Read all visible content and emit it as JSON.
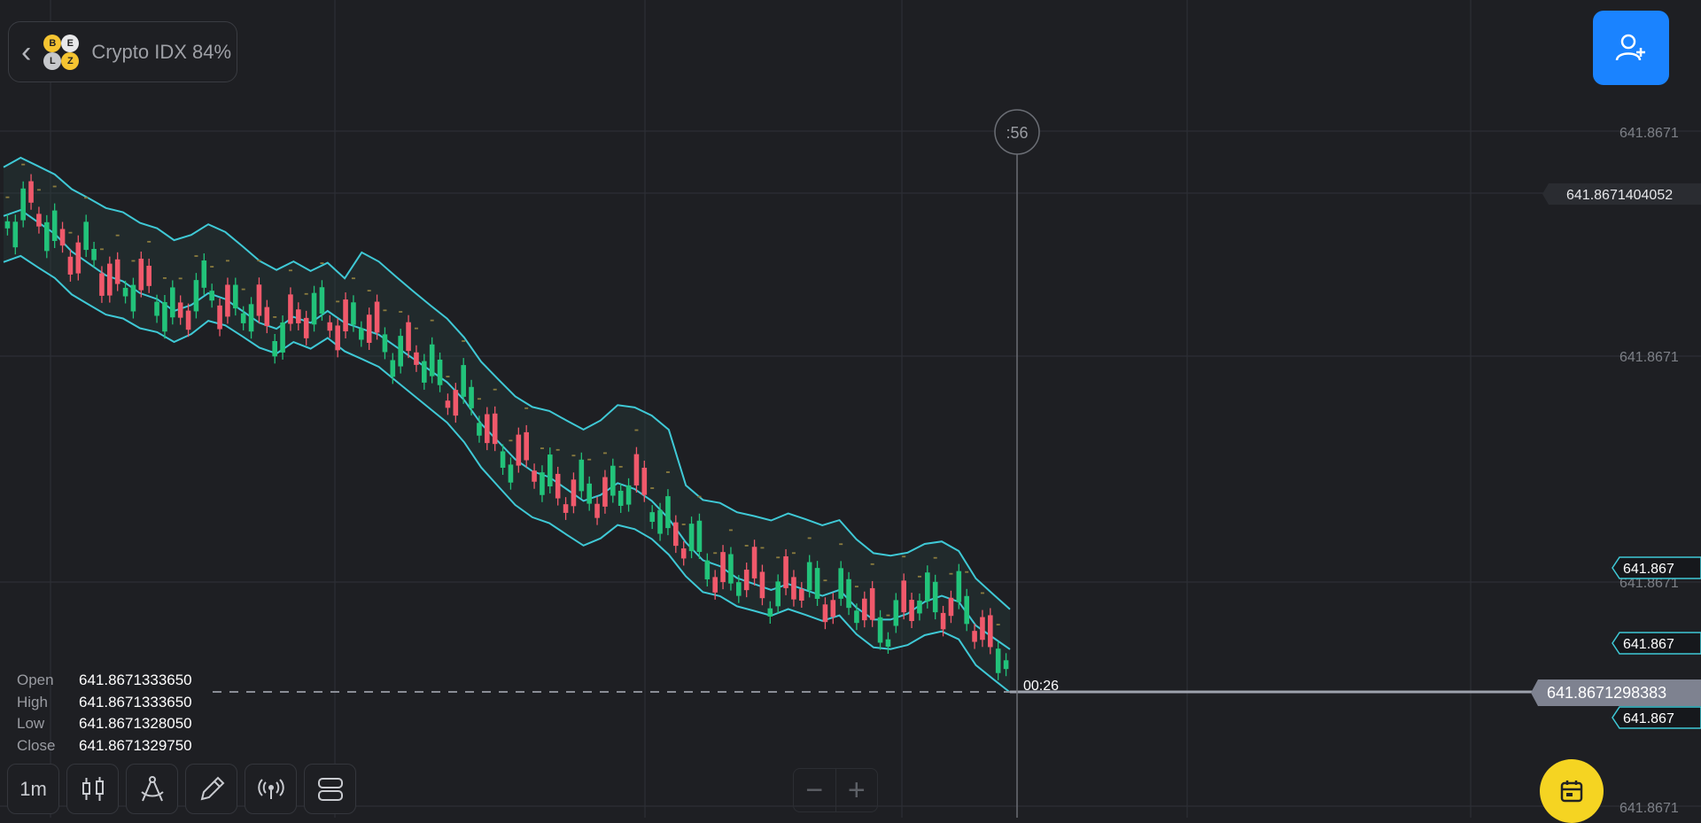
{
  "asset": {
    "title": "Crypto IDX 84%",
    "coin_letters": [
      "B",
      "E",
      "L",
      "Z"
    ]
  },
  "timer": ":56",
  "countdown": "00:26",
  "price_axis": {
    "ticks": [
      {
        "price": 641.8671,
        "label": "641.8671"
      },
      {
        "price": 641.8671,
        "label": "641.8671"
      },
      {
        "price": 641.8671,
        "label": "641.8671"
      },
      {
        "price": 641.8671,
        "label": "641.8671"
      }
    ],
    "high_marker": "641.8671404052",
    "current_price": "641.8671298383",
    "indicator_badges": [
      "641.867",
      "641.867",
      "641.867"
    ]
  },
  "ohlc": {
    "open_label": "Open",
    "open": "641.8671333650",
    "high_label": "High",
    "high": "641.8671333650",
    "low_label": "Low",
    "low": "641.8671328050",
    "close_label": "Close",
    "close": "641.8671329750"
  },
  "toolbar": {
    "timeframe": "1m",
    "icons": [
      "candles-icon",
      "drawing-icon",
      "pencil-icon",
      "signals-icon",
      "layout-icon"
    ]
  },
  "zoom": {
    "minus": "−",
    "plus": "+"
  },
  "colors": {
    "bullish": "#22c37a",
    "bearish": "#f0596b",
    "band": "#3fc9d6",
    "accent": "#1a83ff",
    "calendar": "#f5d422"
  },
  "chart_data": {
    "type": "candlestick",
    "indicators": [
      "bollinger-bands",
      "parabolic-sar"
    ],
    "close_trend": [
      0.14,
      0.13,
      0.15,
      0.17,
      0.2,
      0.22,
      0.24,
      0.25,
      0.27,
      0.28,
      0.3,
      0.29,
      0.27,
      0.28,
      0.3,
      0.32,
      0.33,
      0.31,
      0.32,
      0.3,
      0.32,
      0.33,
      0.34,
      0.36,
      0.38,
      0.4,
      0.42,
      0.45,
      0.49,
      0.52,
      0.55,
      0.57,
      0.58,
      0.6,
      0.62,
      0.61,
      0.59,
      0.6,
      0.62,
      0.65,
      0.69,
      0.72,
      0.73,
      0.75,
      0.76,
      0.77,
      0.76,
      0.77,
      0.78,
      0.77,
      0.8,
      0.82,
      0.82,
      0.81,
      0.79,
      0.78,
      0.79,
      0.83,
      0.85,
      0.87
    ],
    "ohlc_last": {
      "open": 641.867133365,
      "high": 641.867133365,
      "low": 641.867132805,
      "close": 641.867132975
    }
  }
}
